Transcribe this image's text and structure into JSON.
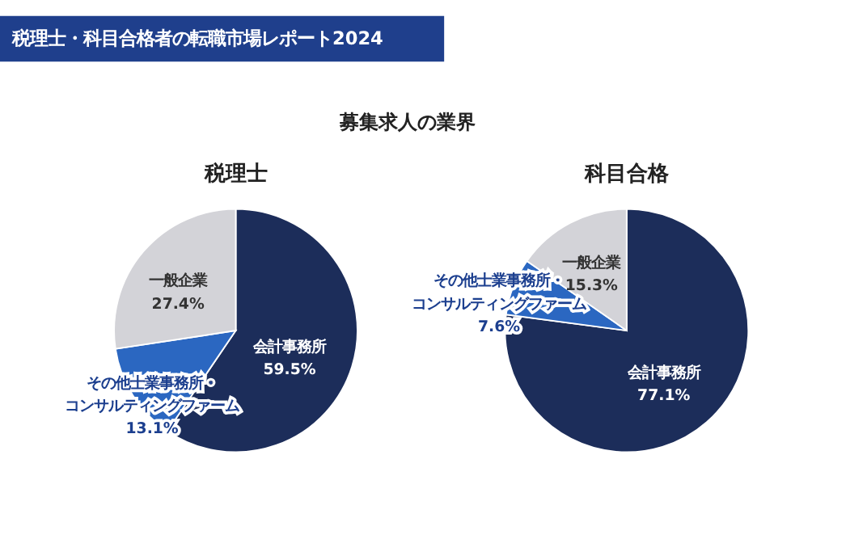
{
  "chart_data": [
    {
      "type": "other",
      "title": "税理士・科目合格者の転職市場レポート2024",
      "subtitle": "募集求人の業界"
    },
    {
      "type": "pie",
      "title": "税理士",
      "categories": [
        "会計事務所",
        "その他士業事務所・コンサルティングファーム",
        "一般企業"
      ],
      "values": [
        59.5,
        13.1,
        27.4
      ],
      "colors": [
        "#1c2d5a",
        "#2b67c1",
        "#d3d3d8"
      ],
      "value_labels": [
        "59.5%",
        "13.1%",
        "27.4%"
      ]
    },
    {
      "type": "pie",
      "title": "科目合格",
      "categories": [
        "会計事務所",
        "その他士業事務所・コンサルティングファーム",
        "一般企業"
      ],
      "values": [
        77.1,
        7.6,
        15.3
      ],
      "colors": [
        "#1c2d5a",
        "#2b67c1",
        "#d3d3d8"
      ],
      "value_labels": [
        "77.1%",
        "7.6%",
        "15.3%"
      ]
    }
  ]
}
